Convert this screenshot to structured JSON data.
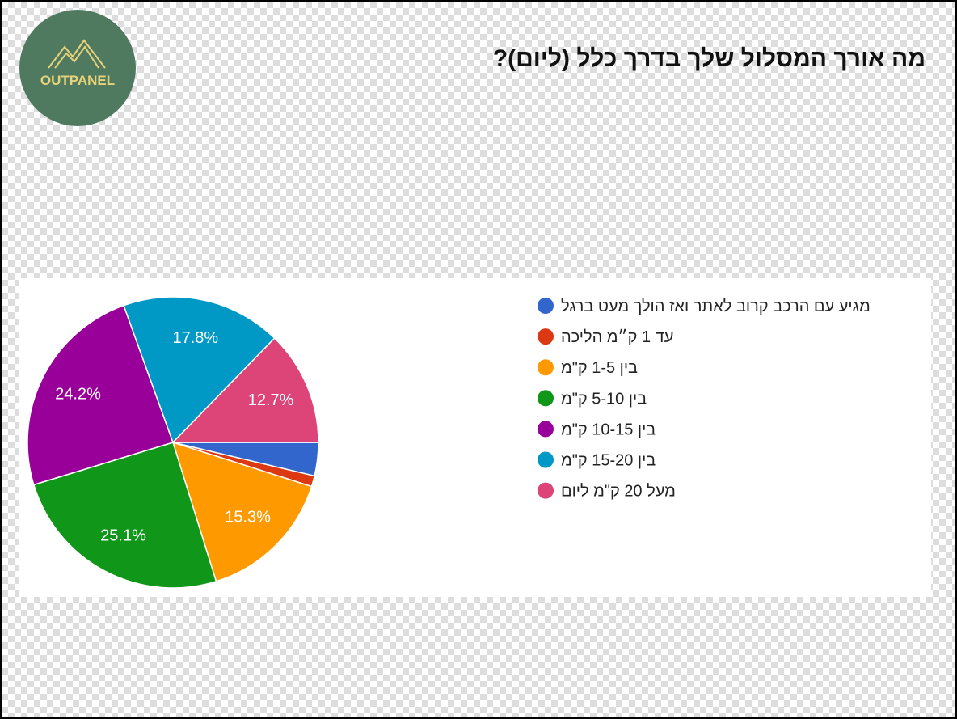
{
  "logo": {
    "text": "OUTPANEL"
  },
  "chart_data": {
    "type": "pie",
    "title": "מה אורך המסלול שלך בדרך כלל (ליום)?",
    "categories": [
      "מגיע עם הרכב קרוב לאתר ואז הולך מעט ברגל",
      "עד 1 ק״מ הליכה",
      "בין 1-5 ק\"מ",
      "בין 5-10 ק\"מ",
      "בין 10-15 ק\"מ",
      "בין 15-20 ק\"מ",
      "מעל 20 ק\"מ ליום"
    ],
    "values": [
      3.7,
      1.2,
      15.3,
      25.1,
      24.2,
      17.8,
      12.7
    ],
    "value_labels": [
      null,
      null,
      "15.3%",
      "25.1%",
      "24.2%",
      "17.8%",
      "12.7%"
    ],
    "colors": [
      "#3366cc",
      "#dc3912",
      "#ff9900",
      "#109618",
      "#990099",
      "#0099c6",
      "#dd4477"
    ],
    "legend": "right"
  }
}
